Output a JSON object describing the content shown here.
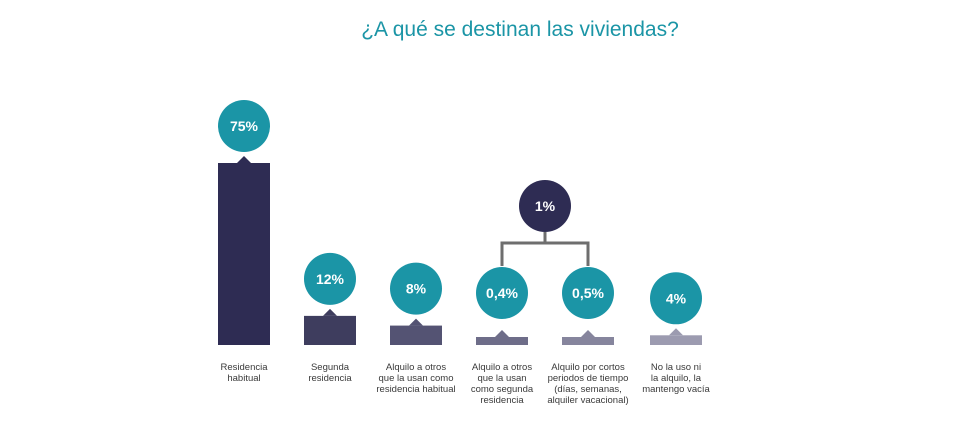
{
  "chart_data": {
    "type": "bar",
    "title": "¿A qué se destinan las viviendas?",
    "categories": [
      "Residencia\nhabitual",
      "Segunda\nresidencia",
      "Alquilo a otros\nque la usan como\nresidencia habitual",
      "Alquilo a otros\nque la usan\ncomo segunda\nresidencia",
      "Alquilo por cortos\nperiodos de tiempo\n(días, semanas,\nalquiler vacacional)",
      "No la uso ni\nla alquilo, la\nmantengo vacía"
    ],
    "values": [
      75,
      12,
      8,
      0.4,
      0.5,
      4
    ],
    "value_labels": [
      "75%",
      "12%",
      "8%",
      "0,4%",
      "0,5%",
      "4%"
    ],
    "group": {
      "label": "1%",
      "members": [
        3,
        4
      ]
    },
    "colors": {
      "bars": [
        "#2e2c53",
        "#3e3d5e",
        "#545373",
        "#6e6d89",
        "#86859d",
        "#9c9bb0"
      ],
      "bubble": "#1b95a6",
      "group_bubble": "#2e2c53",
      "bracket": "#6e6e6e",
      "title": "#1b95a6"
    }
  }
}
